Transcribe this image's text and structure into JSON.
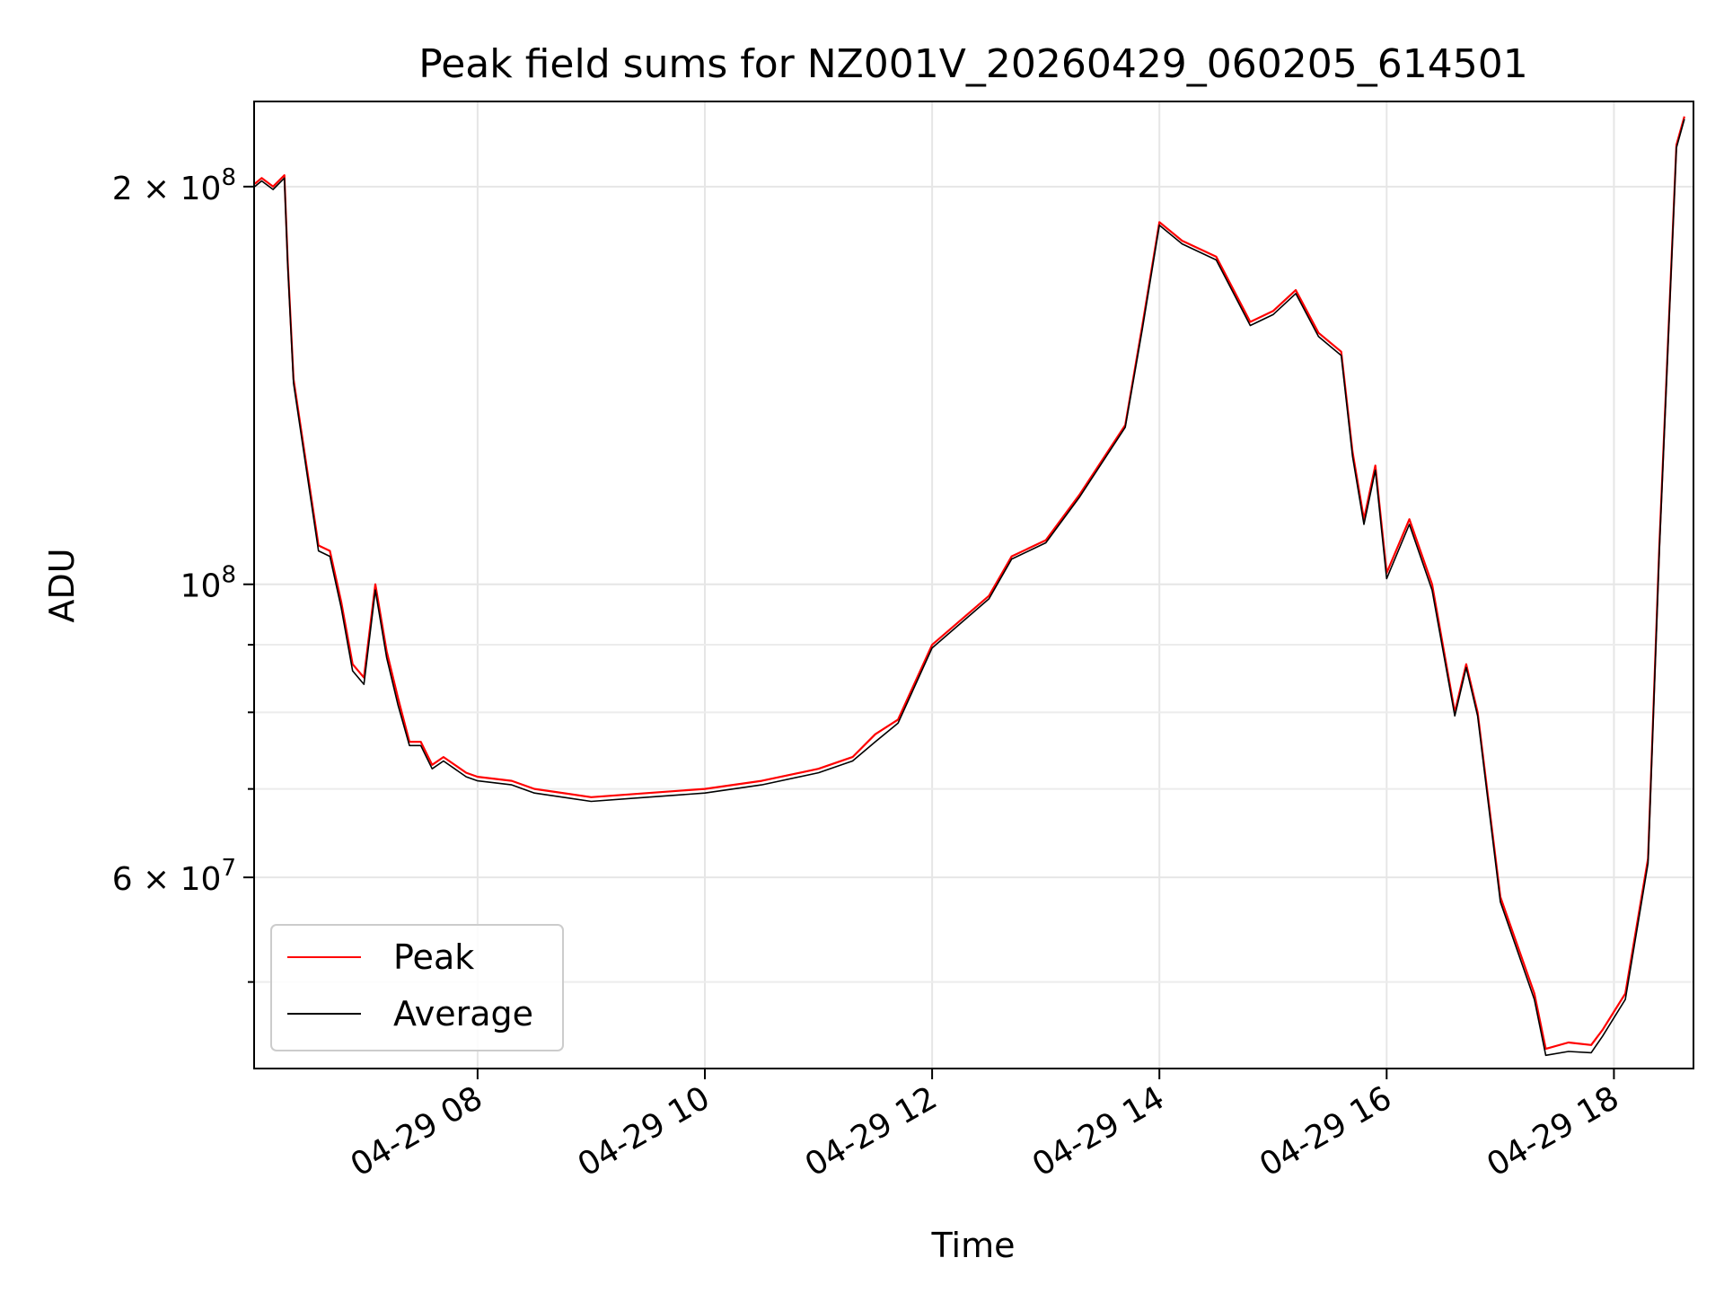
{
  "chart_data": {
    "type": "line",
    "title": "Peak field sums for NZ001V_20260429_060205_614501",
    "xlabel": "Time",
    "ylabel": "ADU",
    "x_unit": "hours (2026-04-29, local clock)",
    "xlim": [
      "2026-04-29 06:02",
      "2026-04-29 18:42"
    ],
    "ylim": [
      43000000,
      232000000
    ],
    "yscale": "log",
    "grid": true,
    "legend_position": "lower-left",
    "x_ticks": [
      {
        "value": 8,
        "label": "04-29 08"
      },
      {
        "value": 10,
        "label": "04-29 10"
      },
      {
        "value": 12,
        "label": "04-29 12"
      },
      {
        "value": 14,
        "label": "04-29 14"
      },
      {
        "value": 16,
        "label": "04-29 16"
      },
      {
        "value": 18,
        "label": "04-29 18"
      }
    ],
    "y_major_ticks": [
      {
        "value": 60000000,
        "base": "6 × 10",
        "exp": "7"
      },
      {
        "value": 100000000,
        "base": "10",
        "exp": "8"
      },
      {
        "value": 200000000,
        "base": "2 × 10",
        "exp": "8"
      }
    ],
    "y_minor_ticks": [
      50000000,
      70000000,
      80000000,
      90000000
    ],
    "x": [
      6.04,
      6.1,
      6.2,
      6.3,
      6.33,
      6.38,
      6.5,
      6.6,
      6.7,
      6.8,
      6.9,
      7.0,
      7.1,
      7.2,
      7.3,
      7.4,
      7.5,
      7.6,
      7.7,
      7.9,
      8.0,
      8.3,
      8.5,
      9.0,
      9.5,
      10.0,
      10.5,
      11.0,
      11.3,
      11.5,
      11.7,
      12.0,
      12.5,
      12.7,
      13.0,
      13.3,
      13.7,
      13.85,
      14.0,
      14.2,
      14.5,
      14.8,
      15.0,
      15.2,
      15.4,
      15.6,
      15.7,
      15.8,
      15.9,
      16.0,
      16.2,
      16.4,
      16.6,
      16.7,
      16.8,
      17.0,
      17.3,
      17.4,
      17.6,
      17.8,
      17.9,
      18.1,
      18.3,
      18.4,
      18.55,
      18.62
    ],
    "series": [
      {
        "name": "Peak",
        "color": "#ff0000",
        "values": [
          201000000,
          203000000,
          200000000,
          204000000,
          175000000,
          143000000,
          122000000,
          107000000,
          106000000,
          97000000,
          87000000,
          85000000,
          100000000,
          89000000,
          82000000,
          76000000,
          76000000,
          73000000,
          74000000,
          72000000,
          71500000,
          71000000,
          70000000,
          69000000,
          69500000,
          70000000,
          71000000,
          72500000,
          74000000,
          77000000,
          79000000,
          90000000,
          98000000,
          105000000,
          108000000,
          117000000,
          132000000,
          157000000,
          188000000,
          182000000,
          177000000,
          158000000,
          161000000,
          167000000,
          155000000,
          150000000,
          126000000,
          112000000,
          123000000,
          102000000,
          112000000,
          100000000,
          80000000,
          87000000,
          80000000,
          58000000,
          49000000,
          44500000,
          45000000,
          44800000,
          46000000,
          49000000,
          62000000,
          107000000,
          215000000,
          226000000
        ]
      },
      {
        "name": "Average",
        "color": "#000000",
        "values": [
          200000000,
          202000000,
          199000000,
          203000000,
          174000000,
          142000000,
          121000000,
          106000000,
          105000000,
          96000000,
          86000000,
          84000000,
          99000000,
          88000000,
          81000000,
          75500000,
          75500000,
          72500000,
          73500000,
          71500000,
          71000000,
          70500000,
          69500000,
          68500000,
          69000000,
          69500000,
          70500000,
          72000000,
          73500000,
          76000000,
          78500000,
          89500000,
          97500000,
          104500000,
          107500000,
          116500000,
          131500000,
          156000000,
          187000000,
          181000000,
          176000000,
          157000000,
          160000000,
          166000000,
          154000000,
          149000000,
          125000000,
          111000000,
          122000000,
          101000000,
          111000000,
          99000000,
          79500000,
          86500000,
          79500000,
          57500000,
          48500000,
          44000000,
          44300000,
          44200000,
          45500000,
          48500000,
          61500000,
          106000000,
          214000000,
          225000000
        ]
      }
    ]
  }
}
